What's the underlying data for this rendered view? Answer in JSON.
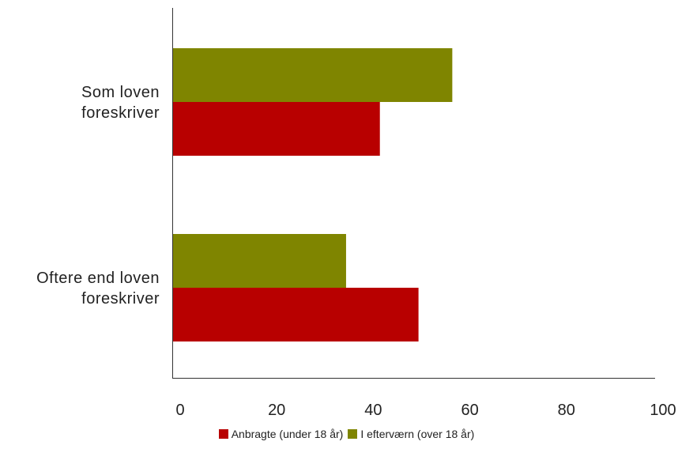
{
  "chart_data": {
    "type": "bar",
    "orientation": "horizontal",
    "categories": [
      [
        "Som loven",
        "foreskriver"
      ],
      [
        "Oftere end loven",
        "foreskriver"
      ]
    ],
    "series": [
      {
        "name": "Anbragte (under 18 år)",
        "color": "#b80000",
        "values": [
          43,
          51
        ]
      },
      {
        "name": "I efterværn (over 18 år)",
        "color": "#7f8500",
        "values": [
          58,
          36
        ]
      }
    ],
    "xlim": [
      0,
      100
    ],
    "xticks": [
      "0",
      "20",
      "40",
      "60",
      "80",
      "100"
    ],
    "grid": false,
    "legend_position": "bottom"
  }
}
